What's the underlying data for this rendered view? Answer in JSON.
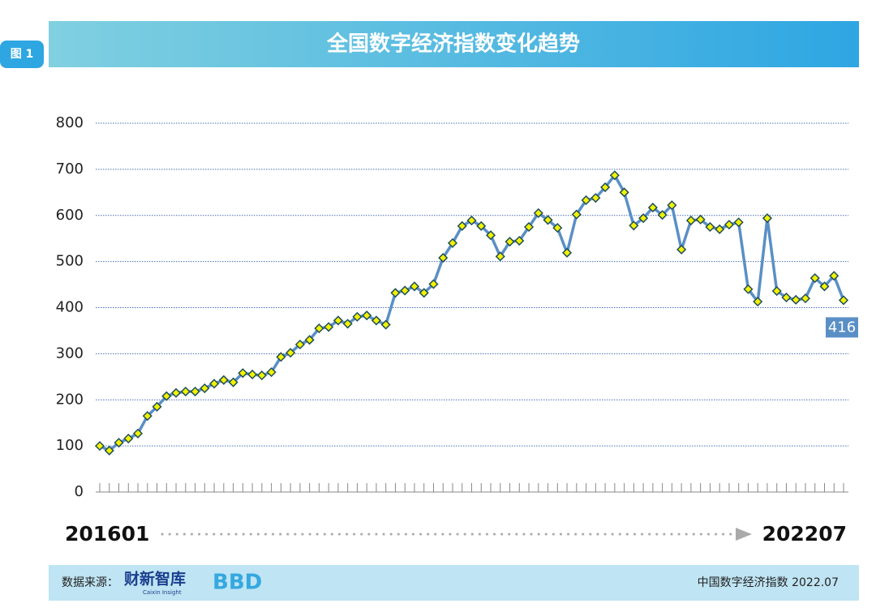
{
  "badge": "图 1",
  "chart_data": {
    "type": "line",
    "title": "全国数字经济指数变化趋势",
    "categories": [
      "201601",
      null,
      null,
      null,
      null,
      null,
      null,
      null,
      null,
      null,
      null,
      null,
      null,
      null,
      null,
      null,
      null,
      null,
      null,
      null,
      null,
      null,
      null,
      null,
      null,
      null,
      null,
      null,
      null,
      null,
      null,
      null,
      null,
      null,
      null,
      null,
      null,
      null,
      null,
      null,
      null,
      null,
      null,
      null,
      null,
      null,
      null,
      null,
      null,
      null,
      null,
      null,
      null,
      null,
      null,
      null,
      null,
      null,
      null,
      null,
      null,
      null,
      null,
      null,
      null,
      null,
      null,
      null,
      null,
      null,
      null,
      null,
      null,
      null,
      null,
      null,
      null,
      null,
      "202207"
    ],
    "series": [
      {
        "color": "#5a8fc6",
        "marker_fill": "#f2f200",
        "marker_stroke": "#1f4d5a",
        "values": [
          100,
          90,
          107,
          116,
          127,
          165,
          185,
          208,
          215,
          218,
          218,
          225,
          235,
          243,
          238,
          258,
          255,
          253,
          260,
          293,
          302,
          320,
          330,
          355,
          358,
          372,
          365,
          380,
          383,
          372,
          363,
          432,
          437,
          446,
          432,
          451,
          508,
          540,
          577,
          589,
          577,
          557,
          511,
          543,
          545,
          575,
          605,
          590,
          573,
          519,
          602,
          633,
          638,
          661,
          687,
          650,
          578,
          594,
          617,
          601,
          622,
          526,
          589,
          591,
          575,
          570,
          580,
          585,
          440,
          413,
          594,
          436,
          422,
          417,
          420,
          464,
          446,
          469,
          416
        ],
        "value_labels": [
          null,
          null,
          null,
          null,
          null,
          null,
          null,
          null,
          null,
          null,
          null,
          null,
          null,
          null,
          null,
          null,
          null,
          null,
          null,
          null,
          null,
          null,
          null,
          null,
          null,
          null,
          null,
          null,
          null,
          null,
          null,
          null,
          null,
          null,
          null,
          null,
          null,
          null,
          null,
          null,
          null,
          null,
          null,
          null,
          null,
          null,
          null,
          null,
          null,
          null,
          null,
          null,
          null,
          null,
          null,
          null,
          null,
          null,
          null,
          null,
          null,
          null,
          null,
          null,
          null,
          null,
          null,
          null,
          null,
          null,
          null,
          null,
          null,
          null,
          null,
          null,
          null,
          null,
          "416"
        ]
      }
    ],
    "ylim": [
      0,
      800
    ],
    "yticks": [
      0,
      100,
      200,
      300,
      400,
      500,
      600,
      700,
      800
    ],
    "grid": true
  },
  "footer": {
    "source_label": "数据来源：",
    "brand": "财新智库",
    "brand_en": "Caixin Insight",
    "logo": "BBD",
    "note": "中国数字经济指数 2022.07"
  }
}
